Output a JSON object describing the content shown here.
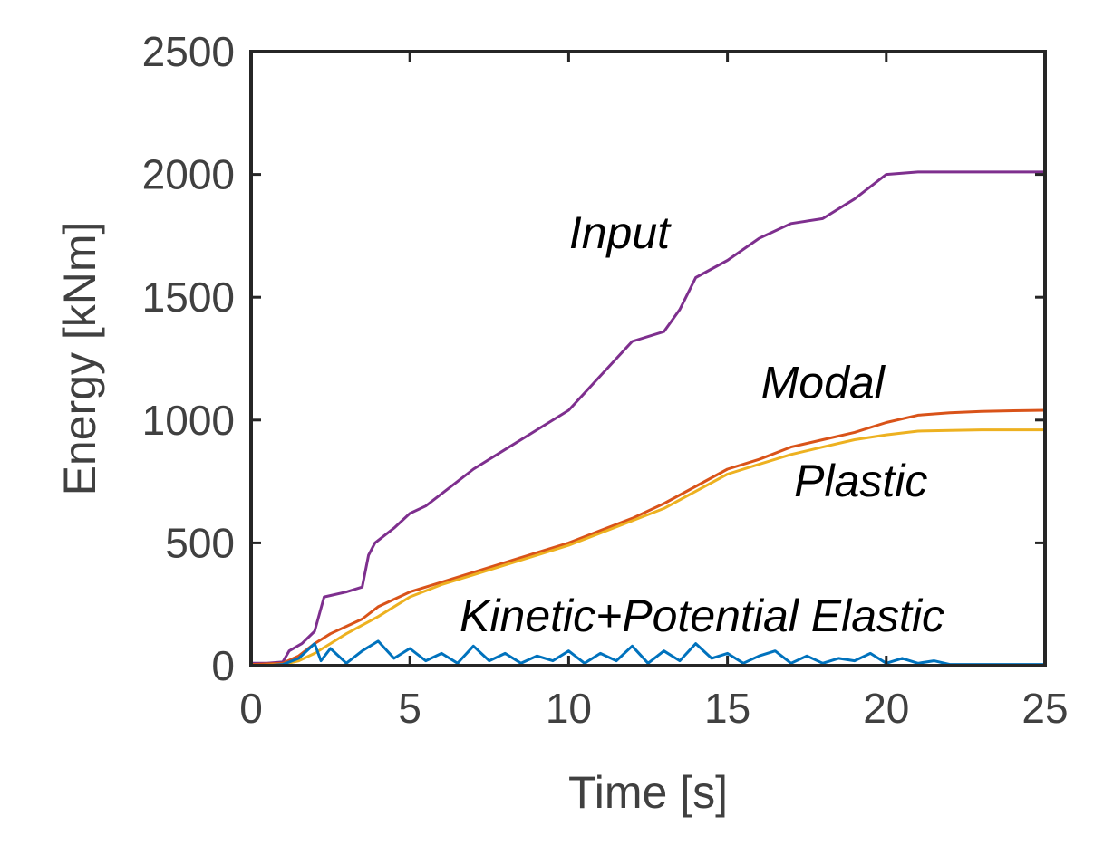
{
  "chart_data": {
    "type": "line",
    "title": "",
    "xlabel": "Time [s]",
    "ylabel": "Energy [kNm]",
    "xlim": [
      0,
      25
    ],
    "ylim": [
      0,
      2500
    ],
    "xticks": [
      0,
      5,
      10,
      15,
      20,
      25
    ],
    "yticks": [
      0,
      500,
      1000,
      1500,
      2000,
      2500
    ],
    "grid": false,
    "series": [
      {
        "name": "Input",
        "color": "#7E2F8E",
        "x": [
          0,
          0.5,
          1.0,
          1.2,
          1.6,
          2.0,
          2.3,
          3.0,
          3.5,
          3.7,
          3.9,
          4.5,
          5.0,
          5.5,
          6.0,
          6.5,
          7.0,
          8.0,
          9.0,
          10.0,
          11.0,
          12.0,
          13.0,
          13.5,
          14.0,
          15.0,
          16.0,
          17.0,
          18.0,
          19.0,
          20.0,
          21.0,
          22.0,
          23.0,
          24.0,
          25.0
        ],
        "y": [
          10,
          10,
          15,
          60,
          90,
          140,
          280,
          300,
          320,
          450,
          500,
          560,
          620,
          650,
          700,
          750,
          800,
          880,
          960,
          1040,
          1180,
          1320,
          1360,
          1450,
          1580,
          1650,
          1740,
          1800,
          1820,
          1900,
          2000,
          2010,
          2010,
          2010,
          2010,
          2010
        ]
      },
      {
        "name": "Modal",
        "color": "#D95319",
        "x": [
          0,
          1.0,
          1.5,
          2.0,
          2.5,
          3.0,
          3.5,
          4.0,
          5.0,
          6.0,
          7.0,
          8.0,
          9.0,
          10.0,
          11.0,
          12.0,
          13.0,
          14.0,
          15.0,
          16.0,
          17.0,
          18.0,
          19.0,
          20.0,
          21.0,
          22.0,
          23.0,
          24.0,
          25.0
        ],
        "y": [
          5,
          10,
          40,
          90,
          130,
          160,
          190,
          240,
          300,
          340,
          380,
          420,
          460,
          500,
          550,
          600,
          660,
          730,
          800,
          840,
          890,
          920,
          950,
          990,
          1020,
          1030,
          1035,
          1038,
          1040
        ]
      },
      {
        "name": "Plastic",
        "color": "#EDB120",
        "x": [
          0,
          1.0,
          1.5,
          2.0,
          2.5,
          3.0,
          4.0,
          5.0,
          6.0,
          7.0,
          8.0,
          9.0,
          10.0,
          11.0,
          12.0,
          13.0,
          14.0,
          15.0,
          16.0,
          17.0,
          18.0,
          19.0,
          20.0,
          21.0,
          22.0,
          23.0,
          24.0,
          25.0
        ],
        "y": [
          0,
          5,
          20,
          50,
          90,
          130,
          200,
          280,
          330,
          370,
          410,
          450,
          490,
          540,
          590,
          640,
          710,
          780,
          820,
          860,
          890,
          920,
          940,
          955,
          958,
          960,
          960,
          960
        ]
      },
      {
        "name": "Kinetic+Potential Elastic",
        "color": "#0072BD",
        "x": [
          0,
          0.5,
          1.0,
          1.5,
          2.0,
          2.2,
          2.5,
          3.0,
          3.5,
          4.0,
          4.5,
          5.0,
          5.5,
          6.0,
          6.5,
          7.0,
          7.5,
          8.0,
          8.5,
          9.0,
          9.5,
          10.0,
          10.5,
          11.0,
          11.5,
          12.0,
          12.5,
          13.0,
          13.5,
          14.0,
          14.5,
          15.0,
          15.5,
          16.0,
          16.5,
          17.0,
          17.5,
          18.0,
          18.5,
          19.0,
          19.5,
          20.0,
          20.5,
          21.0,
          21.5,
          22.0,
          23.0,
          24.0,
          25.0
        ],
        "y": [
          0,
          0,
          5,
          30,
          90,
          20,
          70,
          10,
          60,
          100,
          30,
          70,
          20,
          50,
          10,
          80,
          20,
          50,
          10,
          40,
          20,
          60,
          10,
          50,
          20,
          80,
          10,
          60,
          20,
          90,
          30,
          50,
          10,
          40,
          60,
          10,
          40,
          10,
          30,
          20,
          50,
          10,
          30,
          10,
          20,
          5,
          5,
          5,
          5
        ]
      }
    ],
    "annotations": [
      {
        "text": "Input",
        "x": 11.6,
        "y": 1700
      },
      {
        "text": "Modal",
        "x": 18.0,
        "y": 1090
      },
      {
        "text": "Plastic",
        "x": 19.2,
        "y": 690
      },
      {
        "text": "Kinetic+Potential Elastic",
        "x": 14.2,
        "y": 140
      }
    ]
  }
}
